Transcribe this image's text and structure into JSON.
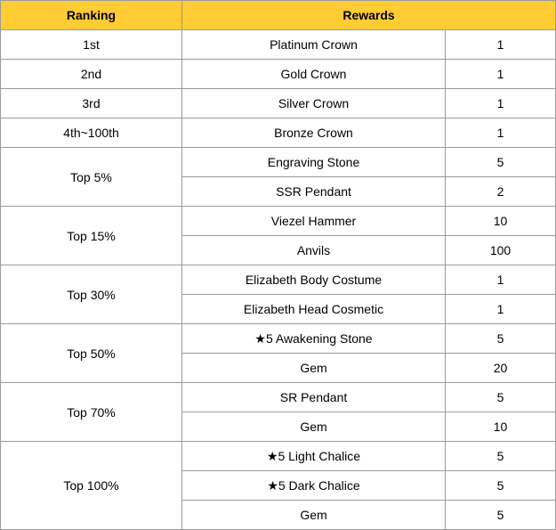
{
  "header": {
    "ranking": "Ranking",
    "rewards": "Rewards"
  },
  "theme": {
    "header_bg": "#ffcc33",
    "border": "#9a9a9a"
  },
  "groups": [
    {
      "rank": "1st",
      "items": [
        {
          "name": "Platinum Crown",
          "qty": "1"
        }
      ]
    },
    {
      "rank": "2nd",
      "items": [
        {
          "name": "Gold Crown",
          "qty": "1"
        }
      ]
    },
    {
      "rank": "3rd",
      "items": [
        {
          "name": "Silver Crown",
          "qty": "1"
        }
      ]
    },
    {
      "rank": "4th~100th",
      "items": [
        {
          "name": "Bronze Crown",
          "qty": "1"
        }
      ]
    },
    {
      "rank": "Top 5%",
      "items": [
        {
          "name": "Engraving Stone",
          "qty": "5"
        },
        {
          "name": "SSR Pendant",
          "qty": "2"
        }
      ]
    },
    {
      "rank": "Top 15%",
      "items": [
        {
          "name": "Viezel Hammer",
          "qty": "10"
        },
        {
          "name": "Anvils",
          "qty": "100"
        }
      ]
    },
    {
      "rank": "Top 30%",
      "items": [
        {
          "name": "Elizabeth Body Costume",
          "qty": "1"
        },
        {
          "name": "Elizabeth Head Cosmetic",
          "qty": "1"
        }
      ]
    },
    {
      "rank": "Top 50%",
      "items": [
        {
          "name": "★5 Awakening Stone",
          "qty": "5"
        },
        {
          "name": "Gem",
          "qty": "20"
        }
      ]
    },
    {
      "rank": "Top 70%",
      "items": [
        {
          "name": "SR Pendant",
          "qty": "5"
        },
        {
          "name": "Gem",
          "qty": "10"
        }
      ]
    },
    {
      "rank": "Top 100%",
      "items": [
        {
          "name": "★5 Light Chalice",
          "qty": "5"
        },
        {
          "name": "★5 Dark Chalice",
          "qty": "5"
        },
        {
          "name": "Gem",
          "qty": "5"
        }
      ]
    }
  ]
}
